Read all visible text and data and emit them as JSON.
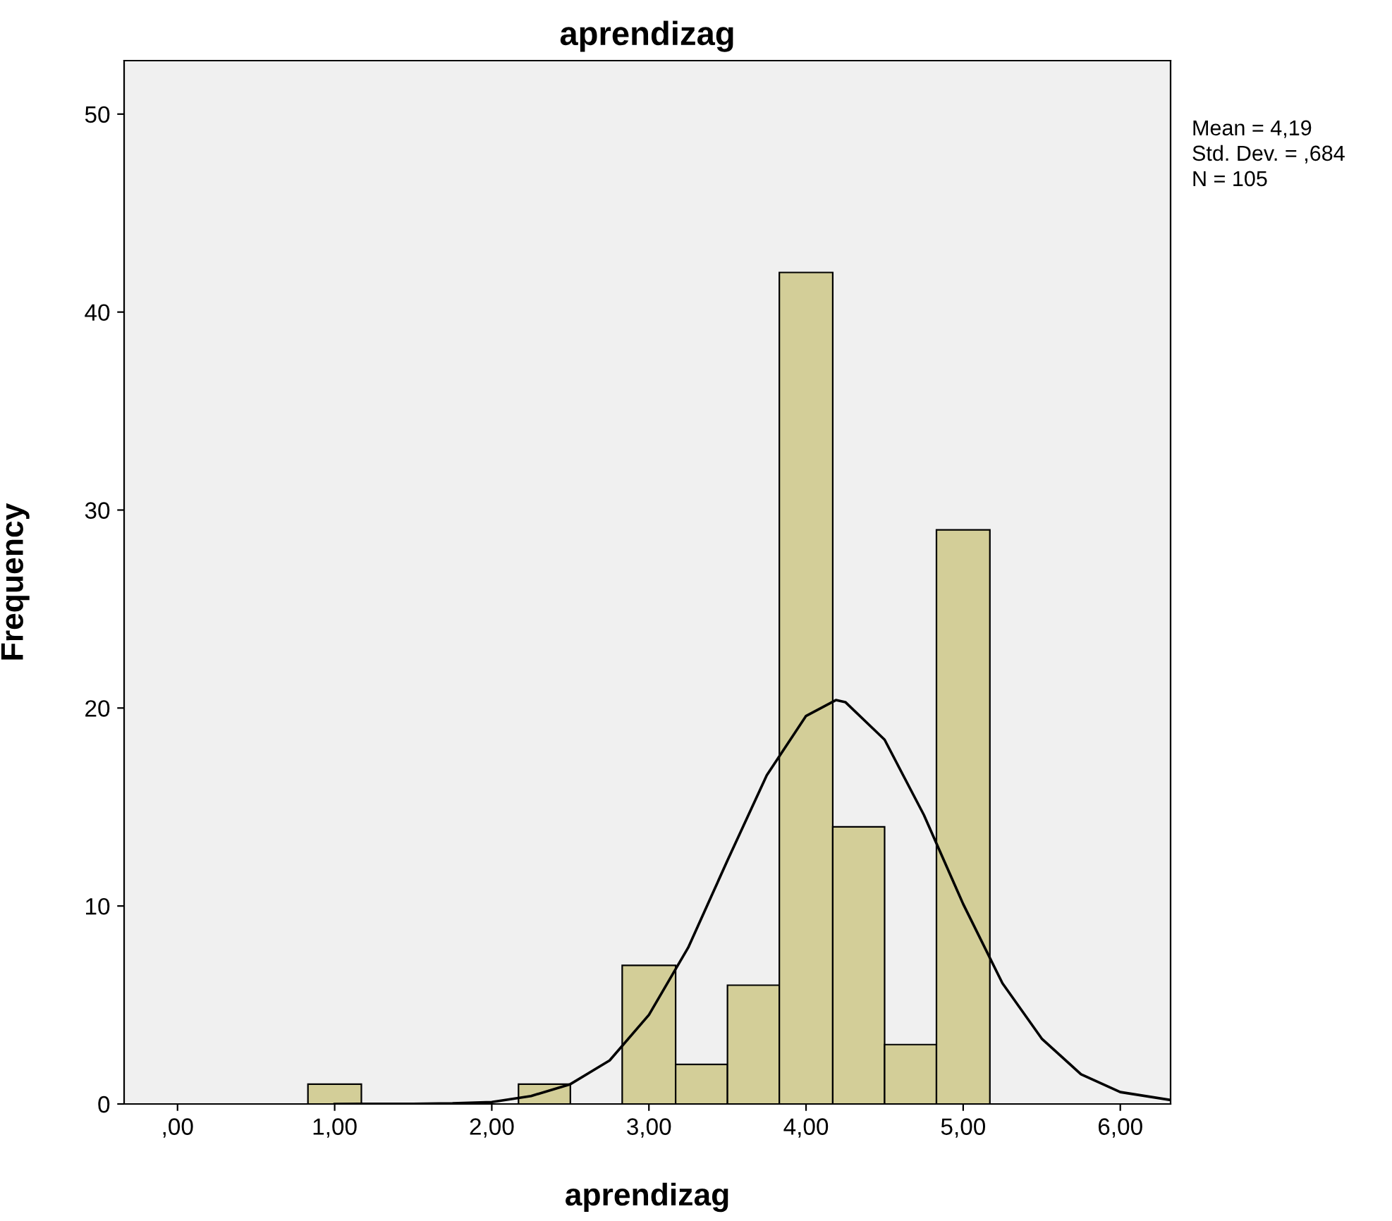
{
  "chart_data": {
    "type": "histogram",
    "title": "aprendizag",
    "xlabel": "aprendizag",
    "ylabel": "Frequency",
    "bins": [
      0.83,
      1.17,
      2.17,
      2.5,
      2.83,
      3.17,
      3.5,
      3.83,
      4.17,
      4.5,
      4.83,
      5.17
    ],
    "values": [
      1,
      0,
      1,
      0,
      7,
      2,
      6,
      42,
      14,
      3,
      29
    ],
    "color": "#d3ce98",
    "series": [
      {
        "type": "line",
        "color": "#000000",
        "x": [
          1.0,
          1.5,
          1.75,
          2.0,
          2.25,
          2.5,
          2.75,
          3.0,
          3.25,
          3.5,
          3.75,
          4.0,
          4.19,
          4.25,
          4.5,
          4.75,
          5.0,
          5.25,
          5.5,
          5.75,
          6.0,
          6.32
        ],
        "values": [
          0,
          0.01,
          0.03,
          0.1,
          0.4,
          1.0,
          2.2,
          4.5,
          7.9,
          12.3,
          16.6,
          19.6,
          20.4,
          20.3,
          18.4,
          14.6,
          10.1,
          6.1,
          3.3,
          1.5,
          0.6,
          0.2
        ]
      }
    ],
    "xlim": [
      -0.34,
      6.32
    ],
    "xticks": [
      {
        "value": 0,
        "label": ",00"
      },
      {
        "value": 1,
        "label": "1,00"
      },
      {
        "value": 2,
        "label": "2,00"
      },
      {
        "value": 3,
        "label": "3,00"
      },
      {
        "value": 4,
        "label": "4,00"
      },
      {
        "value": 5,
        "label": "5,00"
      },
      {
        "value": 6,
        "label": "6,00"
      }
    ],
    "ylim": [
      0,
      52.7
    ],
    "yticks": [
      0,
      10,
      20,
      30,
      40,
      50
    ],
    "grid": false,
    "legend": false,
    "annotations": [
      "Mean = 4,19",
      "Std. Dev. = ,684",
      "N = 105"
    ]
  }
}
